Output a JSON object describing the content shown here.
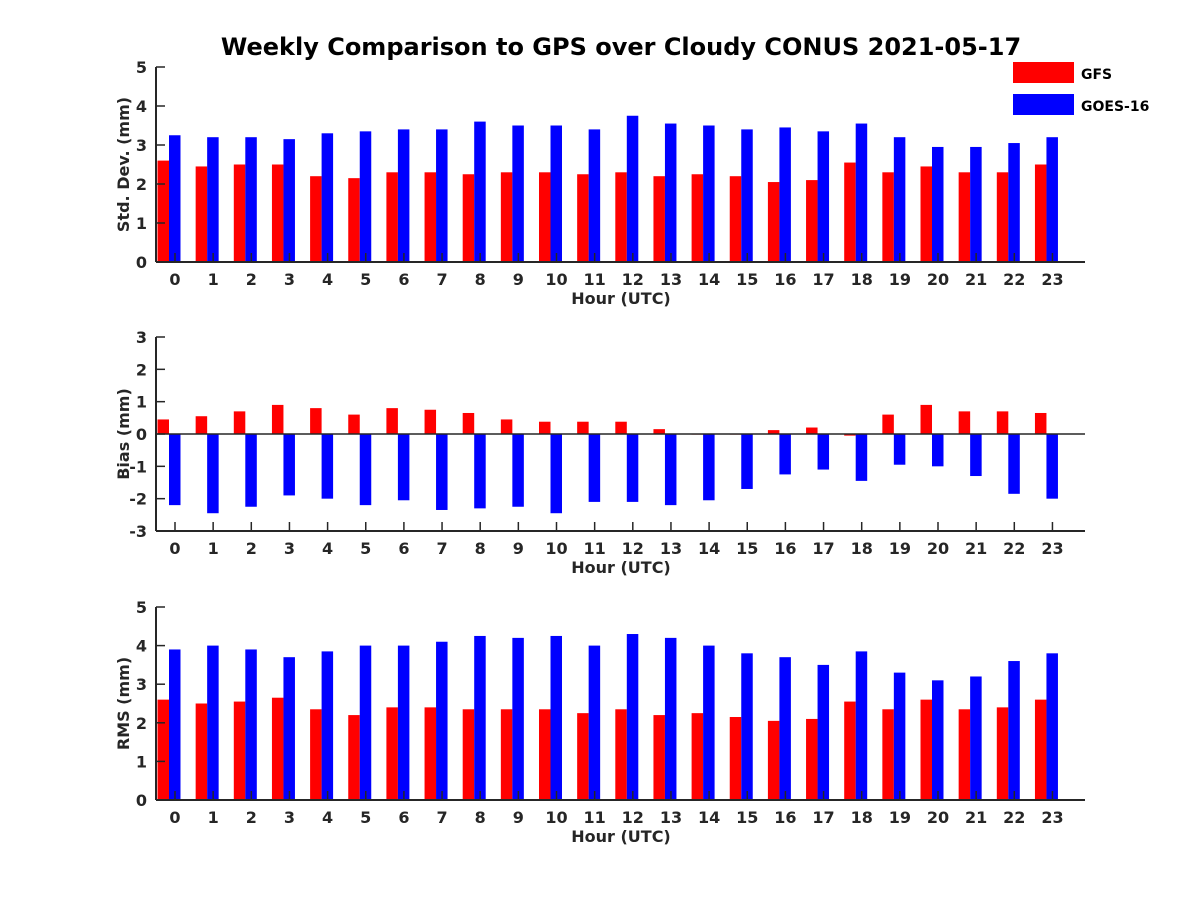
{
  "title": "Weekly Comparison to GPS over Cloudy CONUS 2021-05-17",
  "colors": {
    "GFS": "#ff0000",
    "GOES-16": "#0000ff",
    "axis": "#262626"
  },
  "legend": {
    "placement": "top-right",
    "entries": [
      "GFS",
      "GOES-16"
    ]
  },
  "chart_data": [
    {
      "type": "bar",
      "ylabel": "Std. Dev. (mm)",
      "xlabel": "Hour (UTC)",
      "ylim": [
        0,
        5
      ],
      "yticks": [
        0,
        1,
        2,
        3,
        4,
        5
      ],
      "grid": false,
      "categories": [
        "0",
        "1",
        "2",
        "3",
        "4",
        "5",
        "6",
        "7",
        "8",
        "9",
        "10",
        "11",
        "12",
        "13",
        "14",
        "15",
        "16",
        "17",
        "18",
        "19",
        "20",
        "21",
        "22",
        "23"
      ],
      "series": [
        {
          "name": "GFS",
          "color": "#ff0000",
          "values": [
            2.6,
            2.45,
            2.5,
            2.5,
            2.2,
            2.15,
            2.3,
            2.3,
            2.25,
            2.3,
            2.3,
            2.25,
            2.3,
            2.2,
            2.25,
            2.2,
            2.05,
            2.1,
            2.55,
            2.3,
            2.45,
            2.3,
            2.3,
            2.5
          ]
        },
        {
          "name": "GOES-16",
          "color": "#0000ff",
          "values": [
            3.25,
            3.2,
            3.2,
            3.15,
            3.3,
            3.35,
            3.4,
            3.4,
            3.6,
            3.5,
            3.5,
            3.4,
            3.75,
            3.55,
            3.5,
            3.4,
            3.45,
            3.35,
            3.55,
            3.2,
            2.95,
            2.95,
            3.05,
            3.2
          ]
        }
      ]
    },
    {
      "type": "bar",
      "ylabel": "Bias (mm)",
      "xlabel": "Hour (UTC)",
      "ylim": [
        -3,
        3
      ],
      "yticks": [
        -3,
        -2,
        -1,
        0,
        1,
        2,
        3
      ],
      "grid": false,
      "categories": [
        "0",
        "1",
        "2",
        "3",
        "4",
        "5",
        "6",
        "7",
        "8",
        "9",
        "10",
        "11",
        "12",
        "13",
        "14",
        "15",
        "16",
        "17",
        "18",
        "19",
        "20",
        "21",
        "22",
        "23"
      ],
      "series": [
        {
          "name": "GFS",
          "color": "#ff0000",
          "values": [
            0.45,
            0.55,
            0.7,
            0.9,
            0.8,
            0.6,
            0.8,
            0.75,
            0.65,
            0.45,
            0.38,
            0.38,
            0.38,
            0.15,
            0.0,
            0.0,
            0.12,
            0.2,
            -0.05,
            0.6,
            0.9,
            0.7,
            0.7,
            0.65
          ]
        },
        {
          "name": "GOES-16",
          "color": "#0000ff",
          "values": [
            -2.2,
            -2.45,
            -2.25,
            -1.9,
            -2.0,
            -2.2,
            -2.05,
            -2.35,
            -2.3,
            -2.25,
            -2.45,
            -2.1,
            -2.1,
            -2.2,
            -2.05,
            -1.7,
            -1.25,
            -1.1,
            -1.45,
            -0.95,
            -1.0,
            -1.3,
            -1.85,
            -2.0
          ]
        }
      ]
    },
    {
      "type": "bar",
      "ylabel": "RMS (mm)",
      "xlabel": "Hour (UTC)",
      "ylim": [
        0,
        5
      ],
      "yticks": [
        0,
        1,
        2,
        3,
        4,
        5
      ],
      "grid": false,
      "categories": [
        "0",
        "1",
        "2",
        "3",
        "4",
        "5",
        "6",
        "7",
        "8",
        "9",
        "10",
        "11",
        "12",
        "13",
        "14",
        "15",
        "16",
        "17",
        "18",
        "19",
        "20",
        "21",
        "22",
        "23"
      ],
      "series": [
        {
          "name": "GFS",
          "color": "#ff0000",
          "values": [
            2.6,
            2.5,
            2.55,
            2.65,
            2.35,
            2.2,
            2.4,
            2.4,
            2.35,
            2.35,
            2.35,
            2.25,
            2.35,
            2.2,
            2.25,
            2.15,
            2.05,
            2.1,
            2.55,
            2.35,
            2.6,
            2.35,
            2.4,
            2.6
          ]
        },
        {
          "name": "GOES-16",
          "color": "#0000ff",
          "values": [
            3.9,
            4.0,
            3.9,
            3.7,
            3.85,
            4.0,
            4.0,
            4.1,
            4.25,
            4.2,
            4.25,
            4.0,
            4.3,
            4.2,
            4.0,
            3.8,
            3.7,
            3.5,
            3.85,
            3.3,
            3.1,
            3.2,
            3.6,
            3.8
          ]
        }
      ]
    }
  ]
}
